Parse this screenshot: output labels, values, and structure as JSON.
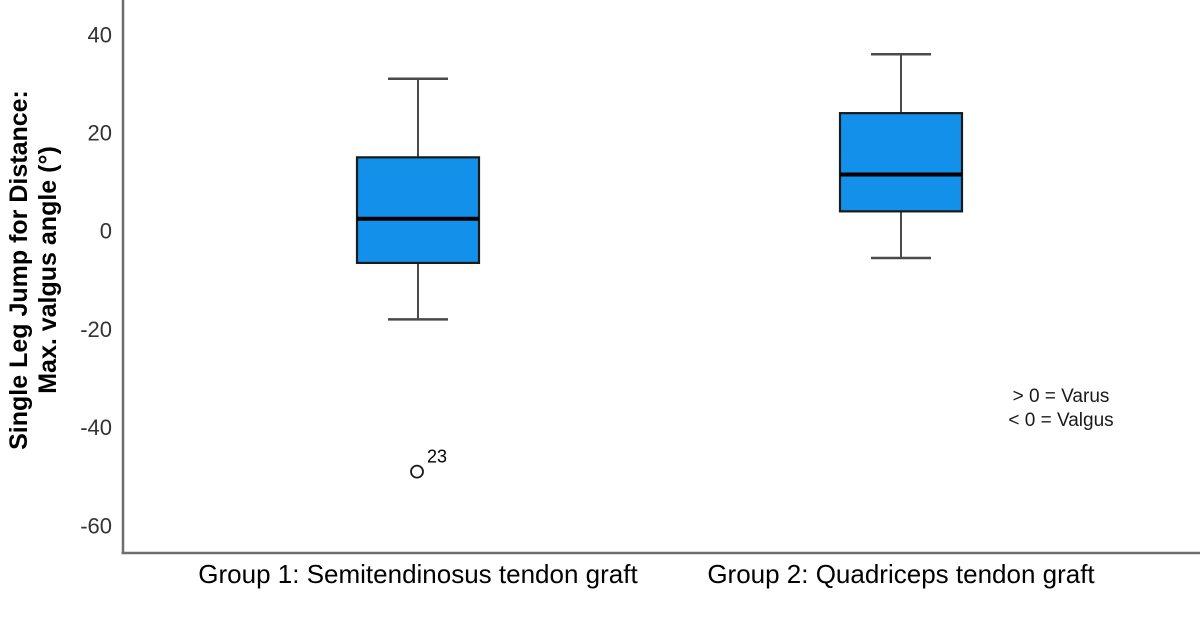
{
  "chart_data": {
    "type": "box",
    "title": "",
    "ylabel_line1": "Single Leg Jump for Distance:",
    "ylabel_line2": "Max. valgus angle (°)",
    "y_ticks": [
      40,
      20,
      0,
      -20,
      -40,
      -60
    ],
    "ylim": [
      -65,
      47
    ],
    "grid": false,
    "legend": "none",
    "categories": [
      "Group 1: Semitendinosus tendon graft",
      "Group 2: Quadriceps tendon graft"
    ],
    "groups": [
      {
        "label": "Group 1: Semitendinosus tendon graft",
        "whisker_low": -18,
        "q1": -6.5,
        "median": 2.5,
        "q3": 15,
        "whisker_high": 31,
        "outliers": [
          {
            "value": -49,
            "case_label": "23"
          }
        ]
      },
      {
        "label": "Group 2: Quadriceps tendon graft",
        "whisker_low": -5.5,
        "q1": 4,
        "median": 11.5,
        "q3": 24,
        "whisker_high": 36,
        "outliers": []
      }
    ],
    "annotation": {
      "line1": "> 0 = Varus",
      "line2": "< 0 = Valgus"
    },
    "colors": {
      "box_fill": "#1390E9",
      "box_border": "#1a1a1a",
      "median": "#000000",
      "whisker": "#4a4a4a",
      "axis": "#6e6e6e",
      "tick_label": "#333333",
      "text": "#000000"
    }
  }
}
